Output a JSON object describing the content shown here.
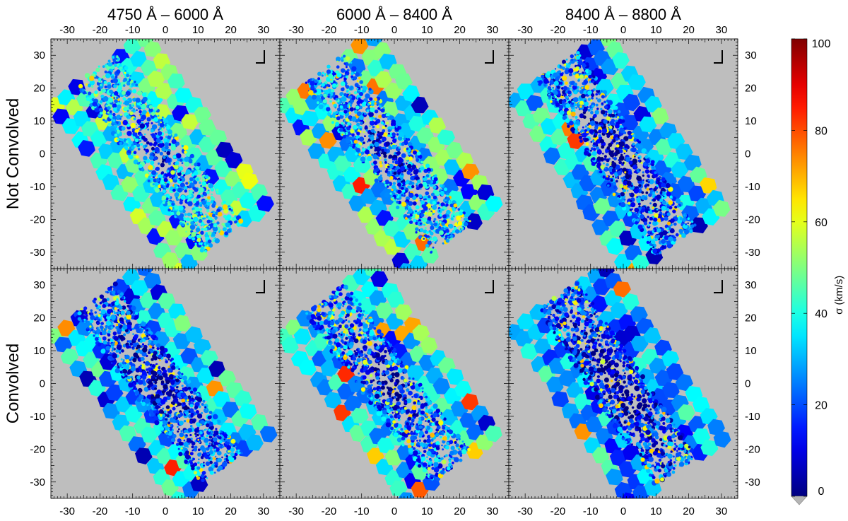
{
  "chart_data": {
    "type": "heatmap",
    "column_titles": [
      "4750 Å – 6000 Å",
      "6000 Å – 8400 Å",
      "8400 Å – 8800 Å"
    ],
    "row_labels": [
      "Not Convolved",
      "Convolved"
    ],
    "x_ticks": [
      -30,
      -20,
      -10,
      0,
      10,
      20,
      30
    ],
    "y_ticks": [
      30,
      20,
      10,
      0,
      -10,
      -20,
      -30
    ],
    "xlim": [
      -35,
      35
    ],
    "ylim": [
      -35,
      35
    ],
    "colorbar": {
      "label": "σ (km/s)",
      "range": [
        0,
        100
      ],
      "ticks": [
        0,
        20,
        40,
        60,
        80,
        100
      ],
      "colormap": "jet",
      "underflow_color": "#b4b4b4"
    },
    "background_color": "#bebebe",
    "panels": [
      {
        "row": 0,
        "col": 0,
        "title": "4750 Å – 6000 Å",
        "mean_sigma": 45
      },
      {
        "row": 0,
        "col": 1,
        "title": "6000 Å – 8400 Å",
        "mean_sigma": 40
      },
      {
        "row": 0,
        "col": 2,
        "title": "8400 Å – 8800 Å",
        "mean_sigma": 33
      },
      {
        "row": 1,
        "col": 0,
        "title": "4750 Å – 6000 Å",
        "mean_sigma": 33
      },
      {
        "row": 1,
        "col": 1,
        "title": "6000 Å – 8400 Å",
        "mean_sigma": 36
      },
      {
        "row": 1,
        "col": 2,
        "title": "8400 Å – 8800 Å",
        "mean_sigma": 30
      }
    ]
  }
}
